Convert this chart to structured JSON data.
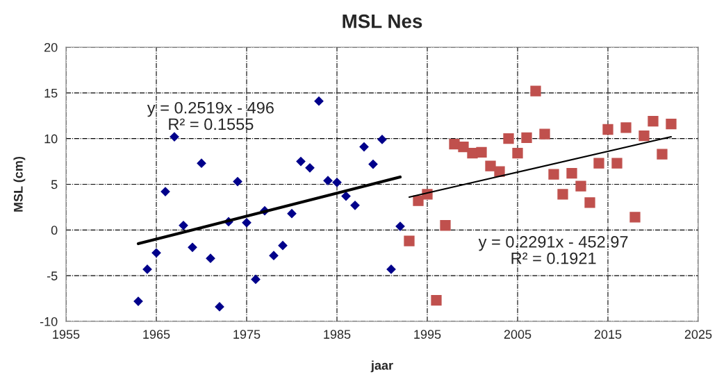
{
  "chart_data": {
    "type": "scatter",
    "title": "MSL Nes",
    "xlabel": "jaar",
    "ylabel": "MSL (cm)",
    "xlim": [
      1955,
      2025
    ],
    "xticks": [
      1955,
      1965,
      1975,
      1985,
      1995,
      2005,
      2015,
      2025
    ],
    "ylim": [
      -10,
      20
    ],
    "yticks": [
      -10,
      -5,
      0,
      5,
      10,
      15,
      20
    ],
    "grid": true,
    "legend": false,
    "series": [
      {
        "marker": "diamond",
        "color": "#00008b",
        "x": [
          1963,
          1964,
          1965,
          1966,
          1967,
          1968,
          1969,
          1970,
          1971,
          1972,
          1973,
          1974,
          1975,
          1976,
          1977,
          1978,
          1979,
          1980,
          1981,
          1982,
          1983,
          1984,
          1985,
          1986,
          1987,
          1988,
          1989,
          1990,
          1991,
          1992
        ],
        "values": [
          -7.8,
          -4.3,
          -2.5,
          4.2,
          10.2,
          0.5,
          -1.9,
          7.3,
          -3.1,
          -8.4,
          0.9,
          5.3,
          0.8,
          -5.4,
          2.1,
          -2.8,
          -1.7,
          1.8,
          7.5,
          6.8,
          14.1,
          5.4,
          5.2,
          3.7,
          2.7,
          9.1,
          7.2,
          9.9,
          -4.3,
          0.4
        ]
      },
      {
        "marker": "square",
        "color": "#c0504d",
        "x": [
          1993,
          1994,
          1995,
          1996,
          1997,
          1998,
          1999,
          2000,
          2001,
          2002,
          2003,
          2004,
          2005,
          2006,
          2007,
          2008,
          2009,
          2010,
          2011,
          2012,
          2013,
          2014,
          2015,
          2016,
          2017,
          2018,
          2019,
          2020,
          2021,
          2022
        ],
        "values": [
          -1.2,
          3.2,
          3.9,
          -7.7,
          0.5,
          9.4,
          9.1,
          8.4,
          8.5,
          7.0,
          6.4,
          10.0,
          8.4,
          10.1,
          15.2,
          10.5,
          6.1,
          3.9,
          6.2,
          4.8,
          3.0,
          7.3,
          11.0,
          7.3,
          11.2,
          1.4,
          10.3,
          11.9,
          8.3,
          11.6
        ]
      },
      {
        "type": "line",
        "marker": "none",
        "color": "#000000",
        "x": [
          1963,
          1992
        ],
        "values": [
          -1.5,
          5.8
        ]
      },
      {
        "type": "line",
        "marker": "none",
        "color": "#000000",
        "x": [
          1993,
          2022
        ],
        "values": [
          3.6,
          10.2
        ]
      }
    ],
    "annotations": [
      "y = 0.2519x - 496\nR² = 0.1555",
      "y = 0.2291x - 452.97\nR² = 0.1921"
    ]
  }
}
